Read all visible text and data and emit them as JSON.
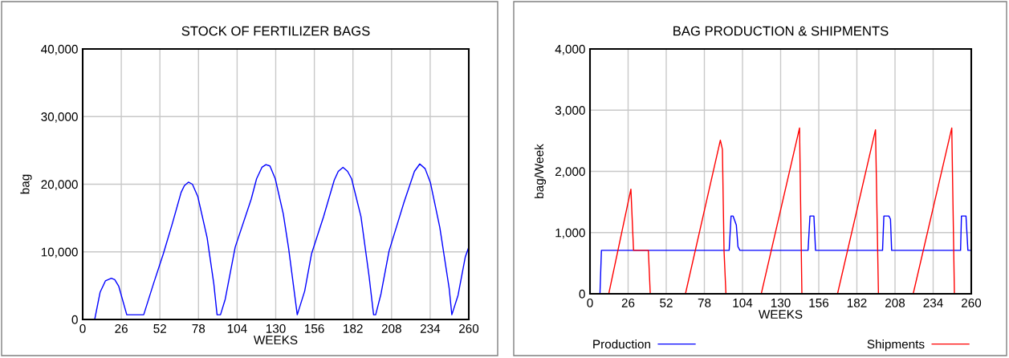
{
  "chart_data": [
    {
      "type": "line",
      "title": "STOCK OF FERTILIZER BAGS",
      "xlabel": "WEEKS",
      "ylabel": "bag",
      "grid": true,
      "legend": false,
      "xlim": [
        0,
        260
      ],
      "xticks": [
        0,
        26,
        52,
        78,
        104,
        130,
        156,
        182,
        208,
        234,
        260
      ],
      "ylim": [
        0,
        40000
      ],
      "yticks": [
        0,
        {
          "value": 10000,
          "label": "10,000"
        },
        {
          "value": 20000,
          "label": "20,000"
        },
        {
          "value": 30000,
          "label": "30,000"
        },
        {
          "value": 40000,
          "label": "40,000"
        }
      ],
      "series": [
        {
          "color": "#0000ff",
          "x": [
            0,
            8.1,
            11.7,
            15.3,
            19.3,
            21.6,
            24.3,
            29.7,
            41.1,
            47.7,
            54.3,
            60.4,
            66.3,
            68.5,
            71.2,
            73.9,
            77.5,
            83.8,
            88.3,
            90.5,
            92.8,
            96,
            102.7,
            113.5,
            117.1,
            120.7,
            123.4,
            126.1,
            129.7,
            135.1,
            138.7,
            144.5,
            149.5,
            154.1,
            162.2,
            169.4,
            172.1,
            175.3,
            178.4,
            181.1,
            187.4,
            192.8,
            195.9,
            197.3,
            200.9,
            206.3,
            216.2,
            223.4,
            227,
            230.6,
            234.2,
            240.5,
            246.8,
            248.6,
            252.8,
            257.7,
            260
          ],
          "values": [
            0,
            0,
            4000,
            5700,
            6100,
            5900,
            4900,
            700,
            700,
            5300,
            9700,
            14200,
            18800,
            19800,
            20300,
            20000,
            18200,
            12100,
            5300,
            700,
            700,
            3000,
            10700,
            17800,
            20800,
            22500,
            22900,
            22700,
            20800,
            15600,
            10500,
            700,
            4200,
            9700,
            15200,
            20600,
            21900,
            22500,
            21900,
            20800,
            15200,
            6500,
            700,
            700,
            3800,
            10100,
            17200,
            21900,
            23000,
            22300,
            20200,
            13600,
            4600,
            700,
            3600,
            9300,
            10700
          ]
        }
      ]
    },
    {
      "type": "line",
      "title": "BAG PRODUCTION & SHIPMENTS",
      "xlabel": "WEEKS",
      "ylabel": "bag/Week",
      "grid": true,
      "legend": "bottom",
      "xlim": [
        0,
        260
      ],
      "xticks": [
        0,
        26,
        52,
        78,
        104,
        130,
        156,
        182,
        208,
        234,
        260
      ],
      "ylim": [
        0,
        4000
      ],
      "yticks": [
        0,
        {
          "value": 1000,
          "label": "1,000"
        },
        {
          "value": 2000,
          "label": "2,000"
        },
        {
          "value": 3000,
          "label": "3,000"
        },
        {
          "value": 4000,
          "label": "4,000"
        }
      ],
      "series": [
        {
          "name": "Production",
          "color": "#0000ff",
          "x": [
            0,
            6.8,
            7.8,
            94.9,
            96.2,
            97.6,
            99.8,
            100.9,
            102.2,
            148.7,
            150,
            152.7,
            153.8,
            199.5,
            200.4,
            203.8,
            204.9,
            205.7,
            252.7,
            253.3,
            256.4,
            257.7,
            260
          ],
          "values": [
            0,
            0,
            710,
            710,
            1270,
            1270,
            1120,
            770,
            710,
            710,
            1270,
            1270,
            710,
            710,
            1270,
            1270,
            1220,
            710,
            710,
            1270,
            1270,
            710,
            710
          ]
        },
        {
          "name": "Shipments",
          "color": "#ff0000",
          "x": [
            0,
            12.8,
            27.9,
            29.7,
            39.8,
            41.1,
            65.1,
            88.9,
            90.3,
            91.4,
            92.7,
            116.8,
            142.9,
            144.5,
            168.8,
            194.7,
            196.7,
            220.4,
            246.7,
            248.5,
            260
          ],
          "values": [
            0,
            0,
            1710,
            710,
            710,
            0,
            0,
            2510,
            2360,
            710,
            0,
            0,
            2710,
            0,
            0,
            2680,
            0,
            0,
            2710,
            0,
            0
          ]
        }
      ]
    }
  ]
}
